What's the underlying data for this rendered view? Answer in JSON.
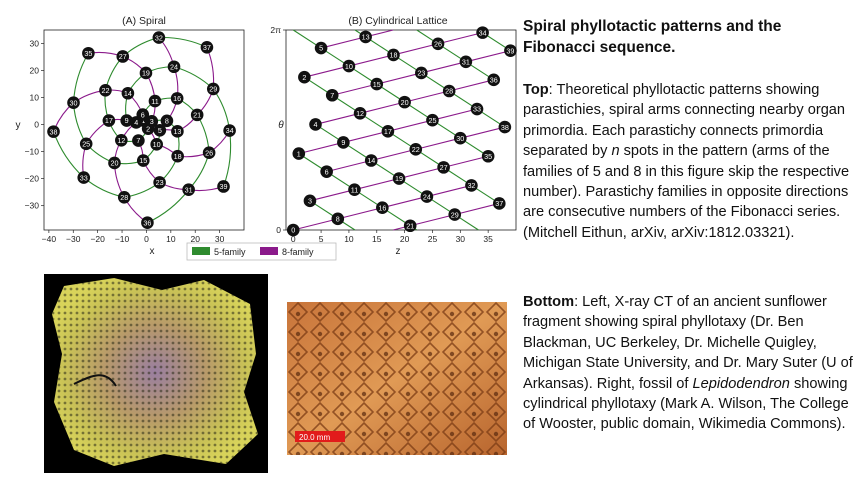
{
  "chart_data": [
    {
      "type": "scatter",
      "title": "(A) Spiral",
      "xlabel": "x",
      "ylabel": "y",
      "xlim": [
        -42,
        40
      ],
      "ylim": [
        -39,
        35
      ],
      "xticks": [
        -40,
        -30,
        -20,
        -10,
        0,
        10,
        20,
        30
      ],
      "yticks": [
        -30,
        -20,
        -10,
        0,
        10,
        20,
        30
      ],
      "xtick_labels": [
        "−40",
        "−30",
        "−20",
        "−10",
        "0",
        "10",
        "20",
        "30"
      ],
      "ytick_labels": [
        "−30",
        "−20",
        "−10",
        "0",
        "10",
        "20",
        "30"
      ],
      "point_labels": [
        "1",
        "2",
        "3",
        "4",
        "5",
        "6",
        "7",
        "8",
        "9",
        "10",
        "11",
        "12",
        "13",
        "14",
        "15",
        "16",
        "17",
        "18",
        "19",
        "20",
        "21",
        "22",
        "23",
        "24",
        "25",
        "26",
        "27",
        "28",
        "29",
        "30",
        "31",
        "32",
        "33",
        "34",
        "35",
        "36",
        "37",
        "38",
        "39"
      ],
      "points": {
        "x": [
          -1.3,
          0.7,
          2.2,
          -4.2,
          5.5,
          -1.5,
          -3.3,
          8.4,
          -8.1,
          4.2,
          3.5,
          -10.3,
          12.7,
          -7.6,
          -1.3,
          12.6,
          -15.4,
          12.8,
          -0.2,
          -13.1,
          20.8,
          -16.8,
          5.4,
          11.3,
          -24.7,
          25.7,
          -9.7,
          -9.1,
          27.4,
          -29.9,
          17.3,
          5.1,
          -25.7,
          34.1,
          -23.8,
          0.4,
          24.8,
          -38.1,
          31.6
        ],
        "y": [
          1.5,
          -1.5,
          1.2,
          0.8,
          -2.1,
          3.7,
          -5.9,
          1.4,
          1.5,
          -7.3,
          8.7,
          -5.8,
          -2.5,
          11.6,
          -13.3,
          9.7,
          1.5,
          -11.7,
          19.1,
          -14.2,
          3.6,
          12.7,
          -21.4,
          21.4,
          -7.1,
          -10.4,
          25.2,
          -26.9,
          13.2,
          8.1,
          -24.1,
          32.2,
          -19.6,
          -2.2,
          26.4,
          -36.3,
          28.6,
          -2.6,
          -22.9
        ]
      },
      "series": [
        {
          "name": "5-family",
          "color": "#2e8b2e",
          "connect_step": 5
        },
        {
          "name": "8-family",
          "color": "#8b1a8b",
          "connect_step": 8
        }
      ],
      "legend": "bottom-center"
    },
    {
      "type": "scatter",
      "title": "(B) Cylindrical Lattice",
      "xlabel": "z",
      "ylabel": "θ",
      "xlim": [
        -1.3,
        40
      ],
      "ylim": [
        0,
        6.2832
      ],
      "xticks": [
        0,
        5,
        10,
        15,
        20,
        25,
        30,
        35
      ],
      "xtick_labels": [
        "0",
        "5",
        "10",
        "15",
        "20",
        "25",
        "30",
        "35"
      ],
      "ytick_labels": [
        "2π",
        "0"
      ],
      "z_step_per_index": 1.0,
      "theta_step_per_index": 2.3999632,
      "point_labels": [
        "0",
        "1",
        "2",
        "3",
        "4",
        "5",
        "6",
        "7",
        "8",
        "9",
        "10",
        "11",
        "12",
        "13",
        "14",
        "15",
        "16",
        "17",
        "18",
        "19",
        "20",
        "21",
        "22",
        "23",
        "24",
        "25",
        "26",
        "27",
        "28",
        "29",
        "30",
        "31",
        "32",
        "33",
        "34",
        "35",
        "36",
        "37",
        "38",
        "39"
      ],
      "series": [
        {
          "name": "5-family",
          "color": "#2e8b2e",
          "connect_step": 5
        },
        {
          "name": "8-family",
          "color": "#8b1a8b",
          "connect_step": 8
        }
      ]
    }
  ],
  "legend": {
    "five_label": "5-family",
    "eight_label": "8-family",
    "five_color": "#2e8b2e",
    "eight_color": "#8b1a8b"
  },
  "text": {
    "heading": "Spiral phyllotactic patterns and the Fibonacci sequence.",
    "top_label": "Top",
    "top_a": ": Theoretical phyllotactic patterns showing parastichies, spiral arms connecting nearby organ primordia. Each parastichy connects primordia separated by ",
    "top_n": "n",
    "top_b": " spots in the pattern (arms of the families of 5 and 8 in this figure skip the respective number). Parastichy families in opposite directions are consecutive numbers of the Fibonacci series. (Mitchell Eithun, arXiv, arXiv:1812.03321).",
    "bottom_label": "Bottom",
    "bottom_a": ": Left, X-ray CT of an ancient sunflower fragment showing spiral phyllotaxy (Dr. Ben Blackman, UC Berkeley, Dr. Michelle Quigley, Michigan State University, and Dr. Mary Suter (U of Arkansas). Right, fossil of ",
    "bottom_italic": "Lepidodendron",
    "bottom_b": " showing cylindrical phyllotaxy (Mark A. Wilson, The College of Wooster, public domain, Wikimedia Commons)."
  },
  "photos": {
    "scale_bar_label": "20.0 mm"
  }
}
